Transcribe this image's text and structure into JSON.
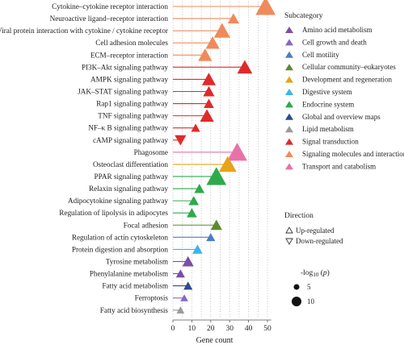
{
  "chart_data": {
    "type": "lollipop",
    "xlabel": "Gene count",
    "xlim": [
      0,
      52
    ],
    "xticks": [
      0,
      10,
      20,
      30,
      40,
      50
    ],
    "grid": "vertical-dotted",
    "legend_position": "right",
    "rows": [
      {
        "label": "Cytokine–cytokine receptor interaction",
        "value": 49,
        "subcategory": "Signaling molecules and interaction",
        "direction": "up",
        "neglog10p": 13
      },
      {
        "label": "Neuroactive ligand–receptor interaction",
        "value": 32,
        "subcategory": "Signaling molecules and interaction",
        "direction": "up",
        "neglog10p": 6
      },
      {
        "label": "Viral protein interaction with cytokine / cytokine receptor",
        "value": 26,
        "subcategory": "Signaling molecules and interaction",
        "direction": "up",
        "neglog10p": 10
      },
      {
        "label": "Cell adhesion molecules",
        "value": 21,
        "subcategory": "Signaling molecules and interaction",
        "direction": "up",
        "neglog10p": 8
      },
      {
        "label": "ECM–receptor interaction",
        "value": 17,
        "subcategory": "Signaling molecules and interaction",
        "direction": "up",
        "neglog10p": 8
      },
      {
        "label": "PI3K–Akt signaling pathway",
        "value": 38,
        "subcategory": "Signal transduction",
        "direction": "up",
        "neglog10p": 9
      },
      {
        "label": "AMPK signaling pathway",
        "value": 19,
        "subcategory": "Signal transduction",
        "direction": "up",
        "neglog10p": 8
      },
      {
        "label": "JAK–STAT signaling pathway",
        "value": 19,
        "subcategory": "Signal transduction",
        "direction": "up",
        "neglog10p": 6
      },
      {
        "label": "Rap1 signaling pathway",
        "value": 19,
        "subcategory": "Signal transduction",
        "direction": "up",
        "neglog10p": 5
      },
      {
        "label": "TNF signaling pathway",
        "value": 18,
        "subcategory": "Signal transduction",
        "direction": "up",
        "neglog10p": 8
      },
      {
        "label": "NF–κ B signaling pathway",
        "value": 12,
        "subcategory": "Signal transduction",
        "direction": "up",
        "neglog10p": 4
      },
      {
        "label": "cAMP signaling pathway",
        "value": 4,
        "subcategory": "Signal transduction",
        "direction": "down",
        "neglog10p": 6
      },
      {
        "label": "Phagosome",
        "value": 34,
        "subcategory": "Transport and catabolism",
        "direction": "up",
        "neglog10p": 13
      },
      {
        "label": "Osteoclast differentiation",
        "value": 29,
        "subcategory": "Development and regeneration",
        "direction": "up",
        "neglog10p": 11
      },
      {
        "label": "PPAR signaling pathway",
        "value": 23,
        "subcategory": "Endocrine system",
        "direction": "up",
        "neglog10p": 13
      },
      {
        "label": "Relaxin signaling pathway",
        "value": 14,
        "subcategory": "Endocrine system",
        "direction": "up",
        "neglog10p": 5
      },
      {
        "label": "Adipocytokine signaling pathway",
        "value": 11,
        "subcategory": "Endocrine system",
        "direction": "up",
        "neglog10p": 5
      },
      {
        "label": "Regulation of lipolysis in adipocytes",
        "value": 10,
        "subcategory": "Endocrine system",
        "direction": "up",
        "neglog10p": 5
      },
      {
        "label": "Focal adhesion",
        "value": 23,
        "subcategory": "Cellular community–eukaryotes",
        "direction": "up",
        "neglog10p": 6
      },
      {
        "label": "Regulation of actin cytoskeleton",
        "value": 20,
        "subcategory": "Cell motility",
        "direction": "up",
        "neglog10p": 4
      },
      {
        "label": "Protein digestion and absorption",
        "value": 13,
        "subcategory": "Digestive system",
        "direction": "up",
        "neglog10p": 5
      },
      {
        "label": "Tyrosine metabolism",
        "value": 8,
        "subcategory": "Amino acid metabolism",
        "direction": "up",
        "neglog10p": 6
      },
      {
        "label": "Phenylalanine metabolism",
        "value": 4,
        "subcategory": "Amino acid metabolism",
        "direction": "up",
        "neglog10p": 4
      },
      {
        "label": "Fatty acid metabolism",
        "value": 8,
        "subcategory": "Global and overview maps",
        "direction": "up",
        "neglog10p": 4
      },
      {
        "label": "Ferroptosis",
        "value": 6,
        "subcategory": "Cell growth and death",
        "direction": "up",
        "neglog10p": 3
      },
      {
        "label": "Fatty acid biosynthesis",
        "value": 4,
        "subcategory": "Lipid metabolism",
        "direction": "up",
        "neglog10p": 3
      }
    ],
    "legend_subcategory": {
      "title": "Subcategory",
      "items": [
        {
          "name": "Amino acid metabolism",
          "color": "#7b4fa2"
        },
        {
          "name": "Cell growth and death",
          "color": "#8468c6"
        },
        {
          "name": "Cell motility",
          "color": "#4a7fc4"
        },
        {
          "name": "Cellular community–eukaryotes",
          "color": "#5b8a2f"
        },
        {
          "name": "Development and regeneration",
          "color": "#e8a317"
        },
        {
          "name": "Digestive system",
          "color": "#3ab5e8"
        },
        {
          "name": "Endocrine system",
          "color": "#2eaa4b"
        },
        {
          "name": "Global and overview maps",
          "color": "#2d4a8c"
        },
        {
          "name": "Lipid metabolism",
          "color": "#9a9a9a"
        },
        {
          "name": "Signal transduction",
          "color": "#e02a2a"
        },
        {
          "name": "Signaling molecules and interaction",
          "color": "#f08a5b"
        },
        {
          "name": "Transport and catabolism",
          "color": "#e872a8"
        }
      ]
    },
    "legend_direction": {
      "title": "Direction",
      "items": [
        {
          "name": "Up-regulated",
          "shape": "triangle-up"
        },
        {
          "name": "Down-regulated",
          "shape": "triangle-down"
        }
      ]
    },
    "legend_size": {
      "title_prefix": "-log",
      "title_sub": "10",
      "title_suffix": " (",
      "title_p": "p",
      "title_close": ")",
      "items": [
        {
          "label": "5",
          "value": 5
        },
        {
          "label": "10",
          "value": 10
        }
      ]
    }
  }
}
